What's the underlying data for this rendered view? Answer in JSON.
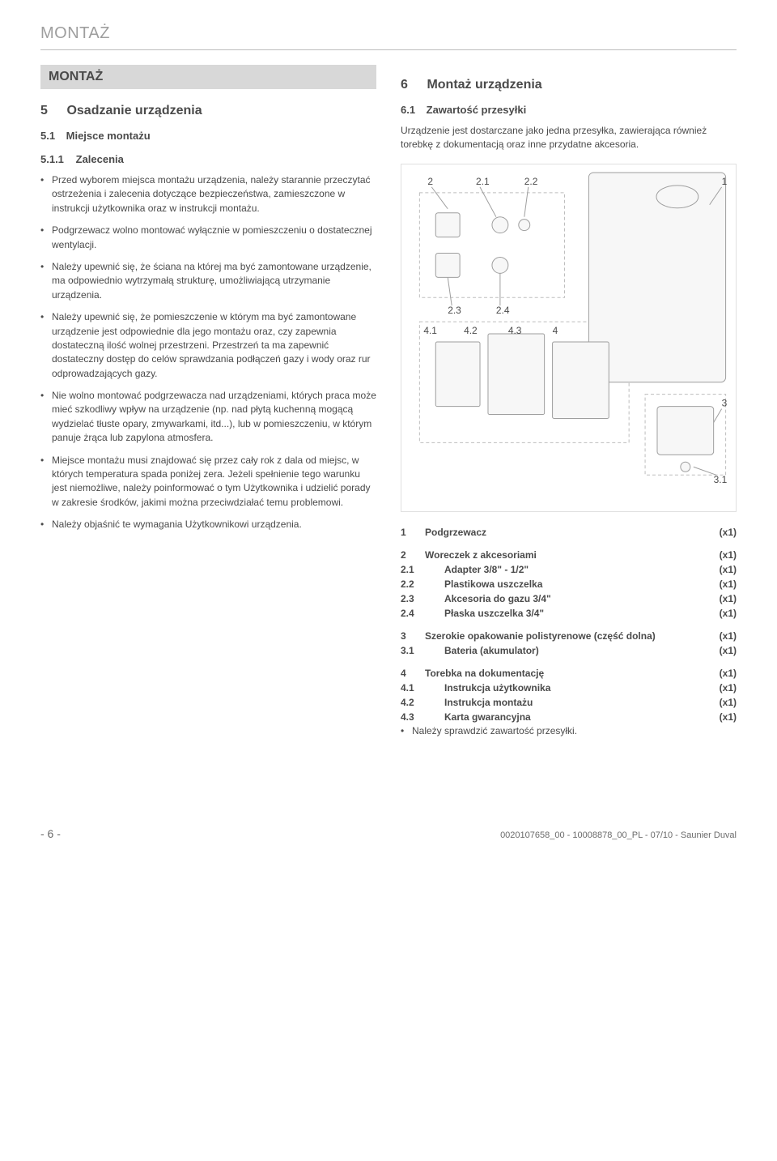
{
  "header": {
    "title": "MONTAŻ"
  },
  "left": {
    "sectionBar": {
      "num": "",
      "title": "MONTAŻ"
    },
    "h5": {
      "num": "5",
      "title": "Osadzanie urządzenia"
    },
    "h51": {
      "num": "5.1",
      "title": "Miejsce montażu"
    },
    "h511": {
      "num": "5.1.1",
      "title": "Zalecenia"
    },
    "bullets": [
      "Przed wyborem miejsca montażu urządzenia, należy starannie przeczytać ostrzeżenia i zalecenia dotyczące bezpieczeństwa, zamieszczone w instrukcji użytkownika oraz w instrukcji montażu.",
      "Podgrzewacz wolno montować wyłącznie w pomieszczeniu o dostatecznej wentylacji.",
      "Należy upewnić się, że ściana na której ma być zamontowane urządzenie, ma odpowiednio wytrzymałą strukturę, umożliwiającą utrzymanie urządzenia.",
      "Należy upewnić się, że pomieszczenie w którym ma być zamontowane urządzenie jest odpowiednie dla jego montażu oraz, czy zapewnia dostateczną ilość wolnej przestrzeni. Przestrzeń ta ma zapewnić dostateczny dostęp do celów sprawdzania podłączeń gazy i wody oraz rur odprowadzających gazy.",
      "Nie wolno montować podgrzewacza nad urządzeniami, których praca może mieć szkodliwy wpływ na urządzenie (np. nad płytą kuchenną mogącą wydzielać tłuste opary, zmywarkami, itd...), lub w pomieszczeniu, w którym panuje żrąca lub zapylona atmosfera.",
      "Miejsce montażu musi znajdować się przez cały rok z dala od miejsc, w których temperatura spada poniżej zera. Jeżeli spełnienie tego warunku jest niemożliwe, należy poinformować o tym Użytkownika i udzielić porady w zakresie środków, jakimi można przeciwdziałać temu problemowi.",
      "Należy objaśnić te wymagania Użytkownikowi urządzenia."
    ]
  },
  "right": {
    "h6": {
      "num": "6",
      "title": "Montaż urządzenia"
    },
    "h61": {
      "num": "6.1",
      "title": "Zawartość przesyłki"
    },
    "intro": "Urządzenie jest dostarczane jako jedna przesyłka, zawierająca również torebkę z dokumentacją oraz inne przydatne akcesoria.",
    "diagram": {
      "labels": [
        "1",
        "2",
        "2.1",
        "2.2",
        "2.3",
        "2.4",
        "3",
        "3.1",
        "4",
        "4.1",
        "4.2",
        "4.3"
      ]
    },
    "parts": [
      {
        "type": "group",
        "num": "1",
        "desc": "Podgrzewacz",
        "qty": "(x1)"
      },
      {
        "type": "gap"
      },
      {
        "type": "group",
        "num": "2",
        "desc": "Woreczek z akcesoriami",
        "qty": "(x1)"
      },
      {
        "type": "sub",
        "num": "2.1",
        "desc": "Adapter 3/8\" - 1/2\"",
        "qty": "(x1)"
      },
      {
        "type": "sub",
        "num": "2.2",
        "desc": "Plastikowa uszczelka",
        "qty": "(x1)"
      },
      {
        "type": "sub",
        "num": "2.3",
        "desc": "Akcesoria do gazu 3/4\"",
        "qty": "(x1)"
      },
      {
        "type": "sub",
        "num": "2.4",
        "desc": "Płaska uszczelka 3/4\"",
        "qty": "(x1)"
      },
      {
        "type": "gap"
      },
      {
        "type": "group",
        "num": "3",
        "desc": "Szerokie opakowanie polistyrenowe (część dolna)",
        "qty": "(x1)"
      },
      {
        "type": "sub",
        "num": "3.1",
        "desc": "Bateria (akumulator)",
        "qty": "(x1)"
      },
      {
        "type": "gap"
      },
      {
        "type": "group",
        "num": "4",
        "desc": "Torebka na dokumentację",
        "qty": "(x1)"
      },
      {
        "type": "sub",
        "num": "4.1",
        "desc": "Instrukcja użytkownika",
        "qty": "(x1)"
      },
      {
        "type": "sub",
        "num": "4.2",
        "desc": "Instrukcja montażu",
        "qty": "(x1)"
      },
      {
        "type": "sub",
        "num": "4.3",
        "desc": "Karta gwarancyjna",
        "qty": "(x1)"
      }
    ],
    "footerBullet": "Należy sprawdzić zawartość przesyłki."
  },
  "footer": {
    "pageNum": "- 6 -",
    "docRef": "0020107658_00 - 10008878_00_PL - 07/10 - Saunier Duval"
  }
}
